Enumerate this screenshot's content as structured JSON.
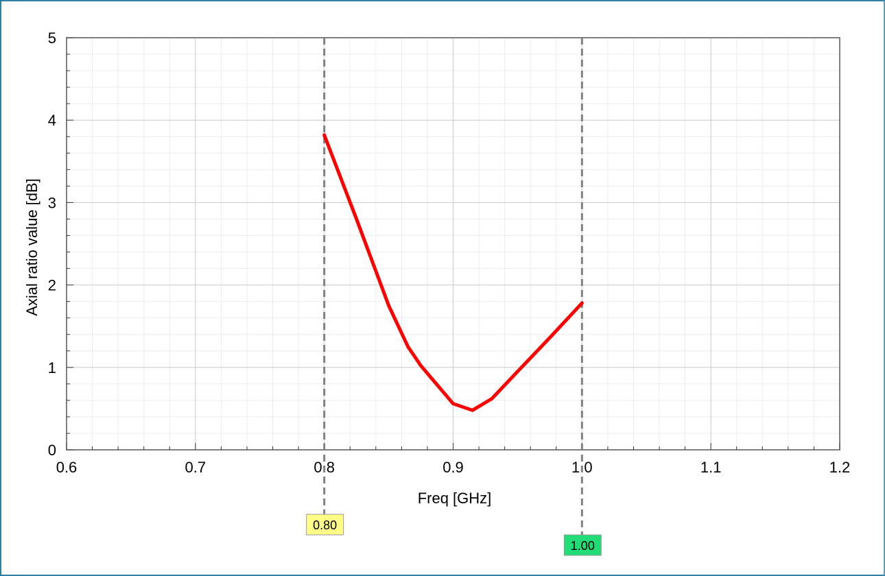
{
  "chart_data": {
    "type": "line",
    "xlabel": "Freq [GHz]",
    "ylabel": "Axial ratio value [dB]",
    "xlim": [
      0.6,
      1.2
    ],
    "ylim": [
      0,
      5
    ],
    "x_ticks": [
      "0.6",
      "0.7",
      "0.8",
      "0.9",
      "1.0",
      "1.1",
      "1.2"
    ],
    "y_ticks": [
      "0",
      "1",
      "2",
      "3",
      "4",
      "5"
    ],
    "grid": true,
    "series": [
      {
        "color": "#ff0000",
        "x": [
          0.8,
          0.825,
          0.85,
          0.865,
          0.875,
          0.9,
          0.915,
          0.93,
          0.95,
          0.975,
          1.0
        ],
        "y": [
          3.82,
          2.8,
          1.75,
          1.25,
          1.02,
          0.56,
          0.48,
          0.62,
          0.95,
          1.36,
          1.78
        ]
      }
    ],
    "markers": [
      {
        "x": 0.8,
        "label": "0.80",
        "color": "#ffff88"
      },
      {
        "x": 1.0,
        "label": "1.00",
        "color": "#22dd77"
      }
    ]
  }
}
